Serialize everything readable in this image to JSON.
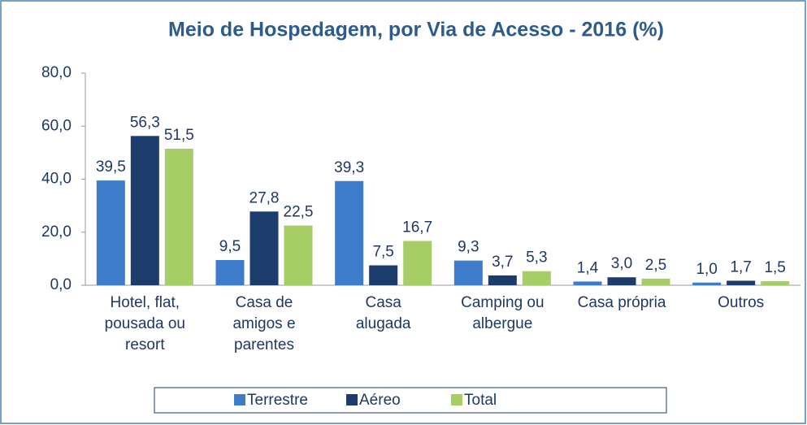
{
  "chart_data": {
    "type": "bar",
    "title": "Meio de Hospedagem, por  Via de Acesso - 2016 (%)",
    "categories": [
      "Hotel, flat, pousada ou resort",
      "Casa de amigos e parentes",
      "Casa alugada",
      "Camping ou albergue",
      "Casa própria",
      "Outros"
    ],
    "series": [
      {
        "name": "Terrestre",
        "color": "#3d7cc9",
        "values": [
          39.5,
          9.5,
          39.3,
          9.3,
          1.4,
          1.0
        ],
        "value_labels": [
          "39,5",
          "9,5",
          "39,3",
          "9,3",
          "1,4",
          "1,0"
        ]
      },
      {
        "name": "Aéreo",
        "color": "#1c3d6b",
        "values": [
          56.3,
          27.8,
          7.5,
          3.7,
          3.0,
          1.7
        ],
        "value_labels": [
          "56,3",
          "27,8",
          "7,5",
          "3,7",
          "3,0",
          "1,7"
        ]
      },
      {
        "name": "Total",
        "color": "#a6cd66",
        "values": [
          51.5,
          22.5,
          16.7,
          5.3,
          2.5,
          1.5
        ],
        "value_labels": [
          "51,5",
          "22,5",
          "16,7",
          "5,3",
          "2,5",
          "1,5"
        ]
      }
    ],
    "ylim": [
      0,
      80
    ],
    "yticks": [
      {
        "value": 0,
        "label": "0,0"
      },
      {
        "value": 20,
        "label": "20,0"
      },
      {
        "value": 40,
        "label": "40,0"
      },
      {
        "value": 60,
        "label": "60,0"
      },
      {
        "value": 80,
        "label": "80,0"
      }
    ],
    "grid": false,
    "legend": "bottom"
  }
}
